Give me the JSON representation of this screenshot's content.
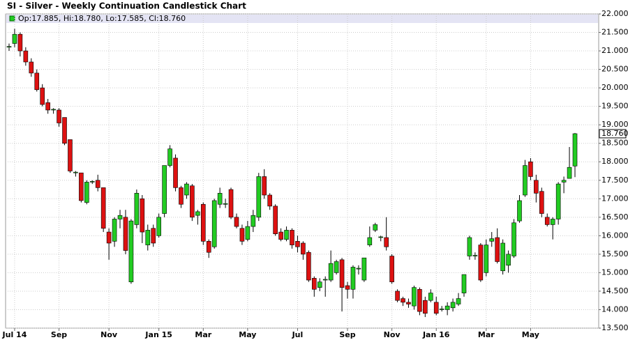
{
  "chart_data": {
    "type": "candlestick",
    "title": "SI - Silver - Weekly Continuation Candlestick Chart",
    "legend": "Op:17.885, Hi:18.780, Lo:17.585, Cl:18.760",
    "up_color": "#22cc22",
    "down_color": "#dd1111",
    "grid": true,
    "categories": [
      null,
      "Jul 14",
      null,
      null,
      null,
      null,
      null,
      null,
      null,
      "Sep",
      null,
      null,
      null,
      null,
      null,
      null,
      null,
      null,
      "Nov",
      null,
      null,
      null,
      null,
      null,
      null,
      null,
      null,
      "Jan 15",
      null,
      null,
      null,
      null,
      null,
      null,
      null,
      "Mar",
      null,
      null,
      null,
      null,
      null,
      null,
      null,
      "May",
      null,
      null,
      null,
      null,
      null,
      null,
      null,
      null,
      "Jul",
      null,
      null,
      null,
      null,
      null,
      null,
      null,
      null,
      "Sep",
      null,
      null,
      null,
      null,
      null,
      null,
      null,
      "Nov",
      null,
      null,
      null,
      null,
      null,
      null,
      null,
      "Jan 16",
      null,
      null,
      null,
      null,
      null,
      null,
      null,
      null,
      "Mar",
      null,
      null,
      null,
      null,
      null,
      null,
      null,
      "May",
      null,
      null,
      null,
      null,
      null,
      null,
      null,
      null
    ],
    "open": [
      21.1,
      21.2,
      21.45,
      21.0,
      20.7,
      20.4,
      20.0,
      19.6,
      19.4,
      19.4,
      19.2,
      18.6,
      17.7,
      17.7,
      16.9,
      17.45,
      17.5,
      17.3,
      16.1,
      15.85,
      16.45,
      16.5,
      14.75,
      16.3,
      17.0,
      15.75,
      16.2,
      16.0,
      16.6,
      17.9,
      18.1,
      17.3,
      17.1,
      17.35,
      16.55,
      16.85,
      15.85,
      15.7,
      16.85,
      16.85,
      17.25,
      16.5,
      16.2,
      15.9,
      16.25,
      16.5,
      17.6,
      17.1,
      16.8,
      16.1,
      15.9,
      16.15,
      15.85,
      15.8,
      15.55,
      14.85,
      14.6,
      14.8,
      14.8,
      15.0,
      15.35,
      14.65,
      14.55,
      15.1,
      14.8,
      15.75,
      16.15,
      15.95,
      15.95,
      15.45,
      14.5,
      14.3,
      14.2,
      14.1,
      14.55,
      14.25,
      14.25,
      14.2,
      14.0,
      14.0,
      14.05,
      14.15,
      14.45,
      15.45,
      15.45,
      15.75,
      15.0,
      15.85,
      15.95,
      15.05,
      15.2,
      15.45,
      16.4,
      17.1,
      18.0,
      17.5,
      17.2,
      16.5,
      16.3,
      16.45,
      17.45,
      17.55,
      17.885
    ],
    "high": [
      21.2,
      21.6,
      21.5,
      21.1,
      20.8,
      20.5,
      20.1,
      19.7,
      19.45,
      19.45,
      19.2,
      18.6,
      17.75,
      17.7,
      17.5,
      17.5,
      17.65,
      17.3,
      16.2,
      16.5,
      16.7,
      16.7,
      16.45,
      17.25,
      17.1,
      16.3,
      16.3,
      16.6,
      17.9,
      18.45,
      18.2,
      17.35,
      17.45,
      17.4,
      16.7,
      16.9,
      15.9,
      17.0,
      17.3,
      17.0,
      17.3,
      16.6,
      16.3,
      16.4,
      16.7,
      17.7,
      17.8,
      17.15,
      16.85,
      16.2,
      16.25,
      16.2,
      16.0,
      15.85,
      15.6,
      14.9,
      14.85,
      14.9,
      15.6,
      15.35,
      15.4,
      14.75,
      15.2,
      15.2,
      15.4,
      16.25,
      16.35,
      16.0,
      16.5,
      15.5,
      14.55,
      14.35,
      14.3,
      14.65,
      14.6,
      14.35,
      14.55,
      14.35,
      14.1,
      14.2,
      14.3,
      14.45,
      14.95,
      16.0,
      15.55,
      15.8,
      15.9,
      16.1,
      16.2,
      15.9,
      15.6,
      16.45,
      17.1,
      18.05,
      18.1,
      17.65,
      17.3,
      16.6,
      16.5,
      17.45,
      17.6,
      18.4,
      18.78
    ],
    "low": [
      21.0,
      21.1,
      20.85,
      20.6,
      20.3,
      19.9,
      19.5,
      19.3,
      19.3,
      18.95,
      18.45,
      17.7,
      17.6,
      16.9,
      16.85,
      17.4,
      17.2,
      16.1,
      15.35,
      15.7,
      16.2,
      15.5,
      14.7,
      16.2,
      15.8,
      15.6,
      15.7,
      15.95,
      16.5,
      17.85,
      17.2,
      16.75,
      17.0,
      16.4,
      16.3,
      15.75,
      15.4,
      15.65,
      16.75,
      16.75,
      16.45,
      16.2,
      15.75,
      15.85,
      16.1,
      16.4,
      17.0,
      16.7,
      16.0,
      15.85,
      15.85,
      15.65,
      15.55,
      15.35,
      14.75,
      14.35,
      14.5,
      14.35,
      14.75,
      14.95,
      13.95,
      14.3,
      14.3,
      14.95,
      14.75,
      15.7,
      16.1,
      15.85,
      15.6,
      14.7,
      14.2,
      14.1,
      14.05,
      14.0,
      13.85,
      13.8,
      14.2,
      13.85,
      13.95,
      13.85,
      13.95,
      14.1,
      14.35,
      15.35,
      15.35,
      14.75,
      14.9,
      15.7,
      15.25,
      14.95,
      15.0,
      15.4,
      16.35,
      17.05,
      17.5,
      16.9,
      16.5,
      16.25,
      15.9,
      16.3,
      17.15,
      17.55,
      17.585
    ],
    "close": [
      21.12,
      21.45,
      21.0,
      20.7,
      20.4,
      19.95,
      19.55,
      19.4,
      19.42,
      19.05,
      18.5,
      17.75,
      17.72,
      16.95,
      17.45,
      17.47,
      17.3,
      16.2,
      15.8,
      16.45,
      16.55,
      15.6,
      16.4,
      17.15,
      16.1,
      16.15,
      15.8,
      16.5,
      17.9,
      18.35,
      17.3,
      16.85,
      17.4,
      16.5,
      16.65,
      15.85,
      15.55,
      16.95,
      17.15,
      16.87,
      16.5,
      16.25,
      15.85,
      16.25,
      16.55,
      17.6,
      17.1,
      16.8,
      16.05,
      15.9,
      16.15,
      15.75,
      15.7,
      15.5,
      14.8,
      14.55,
      14.75,
      14.82,
      15.25,
      15.3,
      14.6,
      14.55,
      15.15,
      15.12,
      15.4,
      15.95,
      16.3,
      15.97,
      15.7,
      14.75,
      14.25,
      14.2,
      14.15,
      14.6,
      13.95,
      13.9,
      14.45,
      13.9,
      14.02,
      14.1,
      14.2,
      14.3,
      14.95,
      15.95,
      15.47,
      14.8,
      15.75,
      15.92,
      15.3,
      15.8,
      15.5,
      16.35,
      16.95,
      17.9,
      17.6,
      17.15,
      16.6,
      16.3,
      16.45,
      17.4,
      17.5,
      17.85,
      18.76
    ],
    "last_price": {
      "value": 18.76,
      "label": "18.760"
    },
    "ylim": [
      13.5,
      22.0
    ],
    "yticks": [
      {
        "value": 13.5,
        "label": "13.500"
      },
      {
        "value": 14.0,
        "label": "14.000"
      },
      {
        "value": 14.5,
        "label": "14.500"
      },
      {
        "value": 15.0,
        "label": "15.000"
      },
      {
        "value": 15.5,
        "label": "15.500"
      },
      {
        "value": 16.0,
        "label": "16.000"
      },
      {
        "value": 16.5,
        "label": "16.500"
      },
      {
        "value": 17.0,
        "label": "17.000"
      },
      {
        "value": 17.5,
        "label": "17.500"
      },
      {
        "value": 18.0,
        "label": "18.000"
      },
      {
        "value": 18.5,
        "label": "18.500"
      },
      {
        "value": 19.0,
        "label": "19.000"
      },
      {
        "value": 19.5,
        "label": "19.500"
      },
      {
        "value": 20.0,
        "label": "20.000"
      },
      {
        "value": 20.5,
        "label": "20.500"
      },
      {
        "value": 21.0,
        "label": "21.000"
      },
      {
        "value": 21.5,
        "label": "21.500"
      },
      {
        "value": 22.0,
        "label": "22.000"
      }
    ]
  }
}
